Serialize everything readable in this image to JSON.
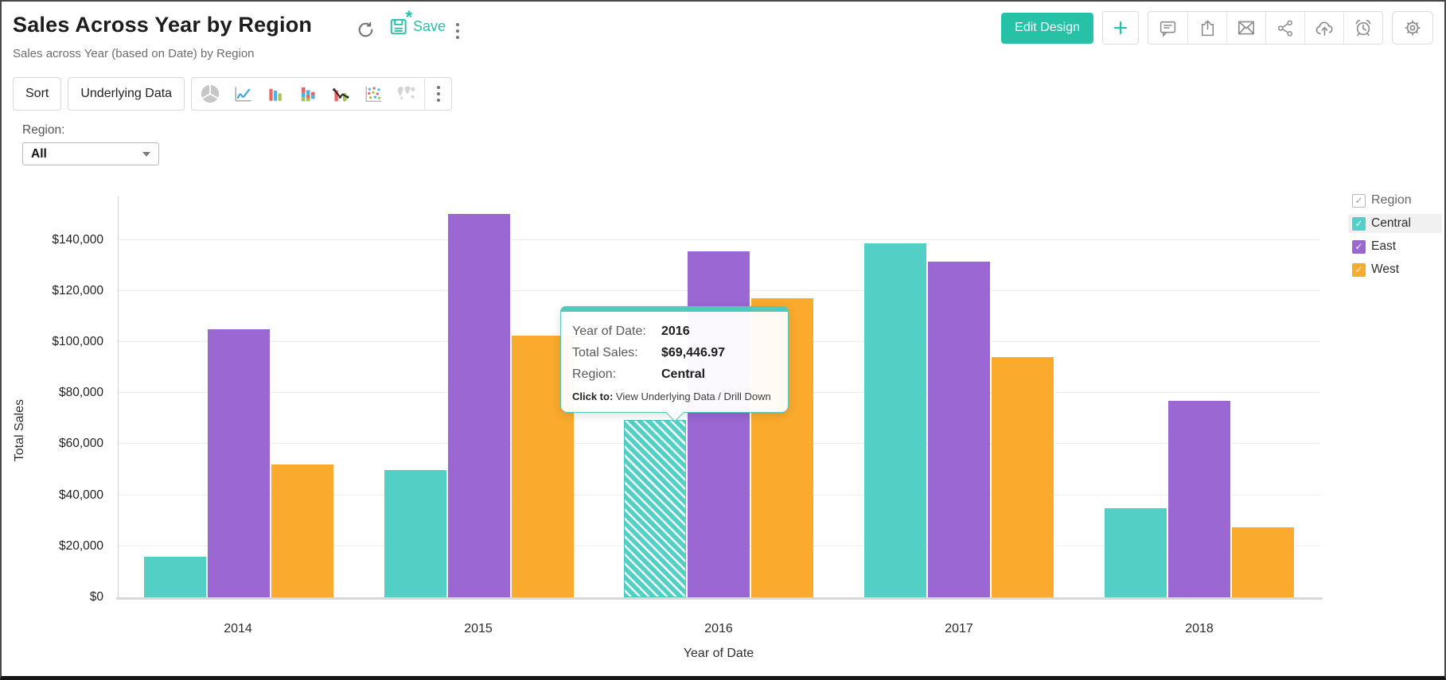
{
  "header": {
    "title": "Sales Across Year by Region",
    "subtitle": "Sales across Year (based on Date) by Region",
    "save_label": "Save",
    "edit_design_label": "Edit Design",
    "accent_color": "#26c2a8"
  },
  "icons": {
    "header_left": [
      "refresh-icon",
      "save-icon",
      "kebab-menu-icon"
    ],
    "header_right": [
      "plus-icon",
      "comment-icon",
      "export-icon",
      "email-icon",
      "share-icon",
      "cloud-upload-icon",
      "alarm-icon",
      "gear-icon"
    ],
    "chart_types": [
      "pie-chart-icon",
      "line-chart-icon",
      "bar-chart-icon",
      "stacked-bar-chart-icon",
      "combo-chart-icon",
      "scatter-chart-icon",
      "map-chart-icon",
      "kebab-menu-icon"
    ]
  },
  "toolbar": {
    "sort_label": "Sort",
    "underlying_data_label": "Underlying Data"
  },
  "filter": {
    "label": "Region:",
    "value": "All"
  },
  "legend": {
    "title": "Region",
    "items": [
      {
        "label": "Central",
        "color": "#54cfc6",
        "checked": true,
        "highlighted": true
      },
      {
        "label": "East",
        "color": "#9a67d3",
        "checked": true,
        "highlighted": false
      },
      {
        "label": "West",
        "color": "#faab2d",
        "checked": true,
        "highlighted": false
      }
    ]
  },
  "tooltip": {
    "rows": [
      {
        "label": "Year of Date:",
        "value": "2016"
      },
      {
        "label": "Total Sales:",
        "value": "$69,446.97"
      },
      {
        "label": "Region:",
        "value": "Central"
      }
    ],
    "footer_label": "Click to:",
    "footer_text": " View Underlying Data / Drill Down"
  },
  "chart_data": {
    "type": "bar",
    "title": "Sales Across Year by Region",
    "categories": [
      "2014",
      "2015",
      "2016",
      "2017",
      "2018"
    ],
    "series": [
      {
        "name": "Central",
        "color": "#54cfc6",
        "values": [
          16000,
          50000,
          69446.97,
          138500,
          35000
        ]
      },
      {
        "name": "East",
        "color": "#9a67d3",
        "values": [
          105000,
          150000,
          135500,
          131500,
          77000
        ]
      },
      {
        "name": "West",
        "color": "#faab2d",
        "values": [
          52000,
          102500,
          117000,
          94000,
          27500
        ]
      }
    ],
    "xlabel": "Year of Date",
    "ylabel": "Total Sales",
    "ylim": [
      0,
      157000
    ],
    "y_ticks": [
      {
        "value": 0,
        "label": "$0"
      },
      {
        "value": 20000,
        "label": "$20,000"
      },
      {
        "value": 40000,
        "label": "$40,000"
      },
      {
        "value": 60000,
        "label": "$60,000"
      },
      {
        "value": 80000,
        "label": "$80,000"
      },
      {
        "value": 100000,
        "label": "$100,000"
      },
      {
        "value": 120000,
        "label": "$120,000"
      },
      {
        "value": 140000,
        "label": "$140,000"
      }
    ],
    "grid": true,
    "legend_position": "right",
    "highlight": {
      "category": "2016",
      "series": "Central"
    }
  }
}
